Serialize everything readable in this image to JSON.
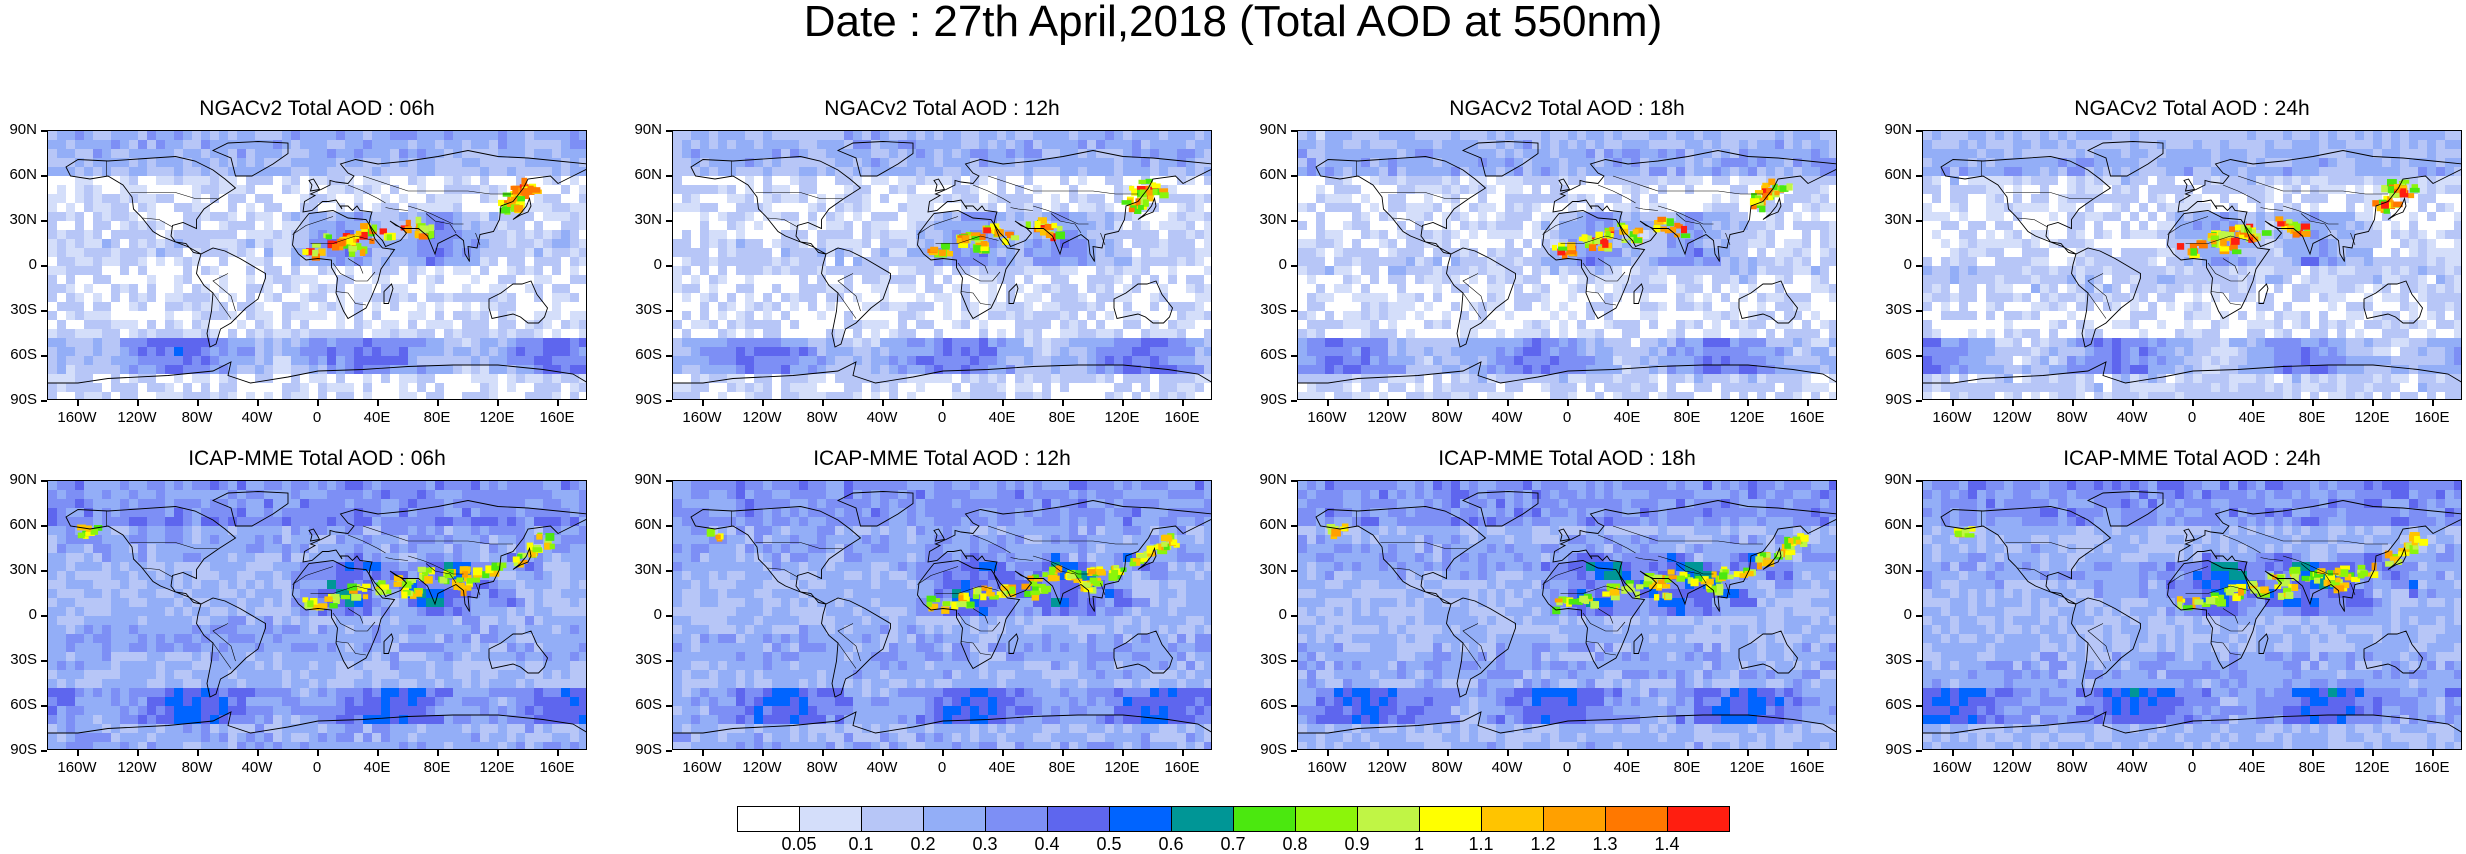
{
  "title": "Date : 27th April,2018 (Total AOD at 550nm)",
  "lat_labels": [
    "90N",
    "60N",
    "30N",
    "0",
    "30S",
    "60S",
    "90S"
  ],
  "lon_labels": [
    "160W",
    "120W",
    "80W",
    "40W",
    "0",
    "40E",
    "80E",
    "120E",
    "160E"
  ],
  "panels": [
    {
      "title": "NGACv2 Total AOD : 06h",
      "model": "NGACv2",
      "hour": "06h"
    },
    {
      "title": "NGACv2 Total AOD : 12h",
      "model": "NGACv2",
      "hour": "12h"
    },
    {
      "title": "NGACv2 Total AOD : 18h",
      "model": "NGACv2",
      "hour": "18h"
    },
    {
      "title": "NGACv2 Total AOD : 24h",
      "model": "NGACv2",
      "hour": "24h"
    },
    {
      "title": "ICAP-MME Total AOD : 06h",
      "model": "ICAP-MME",
      "hour": "06h"
    },
    {
      "title": "ICAP-MME Total AOD : 12h",
      "model": "ICAP-MME",
      "hour": "12h"
    },
    {
      "title": "ICAP-MME Total AOD : 18h",
      "model": "ICAP-MME",
      "hour": "18h"
    },
    {
      "title": "ICAP-MME Total AOD : 24h",
      "model": "ICAP-MME",
      "hour": "24h"
    }
  ],
  "colorbar": {
    "colors": [
      "#ffffff",
      "#d4defa",
      "#b7c6f7",
      "#93aef7",
      "#7d8ff5",
      "#5e66ee",
      "#0064ff",
      "#009696",
      "#4be80f",
      "#8cf50a",
      "#c0f545",
      "#ffff00",
      "#ffc400",
      "#ffa000",
      "#ff7800",
      "#ff1e10"
    ],
    "labels": [
      "0.05",
      "0.1",
      "0.2",
      "0.3",
      "0.4",
      "0.5",
      "0.6",
      "0.7",
      "0.8",
      "0.9",
      "1",
      "1.1",
      "1.2",
      "1.3",
      "1.4"
    ]
  }
}
